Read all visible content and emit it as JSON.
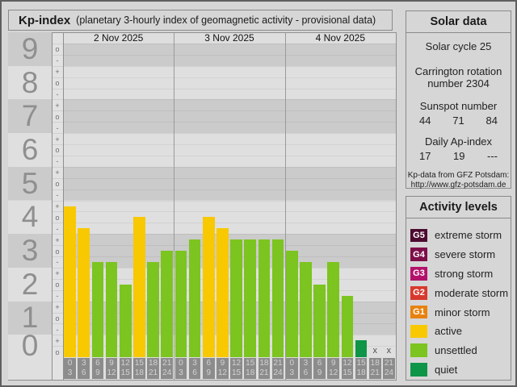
{
  "window": {
    "title_main": "Kp-index",
    "title_sub": "(planetary 3-hourly index of geomagnetic activity - provisional data)"
  },
  "chart_data": {
    "type": "bar",
    "title": "Kp-index",
    "ylabel": "Kp",
    "ylim": [
      0,
      9.67
    ],
    "grid": true,
    "y_major_ticks": [
      "9",
      "8",
      "7",
      "6",
      "5",
      "4",
      "3",
      "2",
      "1",
      "0"
    ],
    "y_sub_ticks": [
      "+",
      "o",
      "-"
    ],
    "x_day_labels": [
      "2 Nov 2025",
      "3 Nov 2025",
      "4 Nov 2025"
    ],
    "hour_slots": [
      [
        "0",
        "3"
      ],
      [
        "3",
        "6"
      ],
      [
        "6",
        "9"
      ],
      [
        "9",
        "12"
      ],
      [
        "12",
        "15"
      ],
      [
        "15",
        "18"
      ],
      [
        "18",
        "21"
      ],
      [
        "21",
        "24"
      ]
    ],
    "no_data_marker": "x",
    "series": [
      {
        "date": "2 Nov 2025",
        "values": [
          4.33,
          3.67,
          2.67,
          2.67,
          2.0,
          4.0,
          2.67,
          3.0
        ],
        "kp_labels": [
          "4+",
          "4-",
          "3-",
          "3-",
          "2o",
          "4o",
          "3-",
          "3o"
        ],
        "levels": [
          "active",
          "active",
          "unsettled",
          "unsettled",
          "unsettled",
          "active",
          "unsettled",
          "unsettled"
        ]
      },
      {
        "date": "3 Nov 2025",
        "values": [
          3.0,
          3.33,
          4.0,
          3.67,
          3.33,
          3.33,
          3.33,
          3.33
        ],
        "kp_labels": [
          "3o",
          "3+",
          "4o",
          "4-",
          "3+",
          "3+",
          "3+",
          "3+"
        ],
        "levels": [
          "unsettled",
          "unsettled",
          "active",
          "active",
          "unsettled",
          "unsettled",
          "unsettled",
          "unsettled"
        ]
      },
      {
        "date": "4 Nov 2025",
        "values": [
          3.0,
          2.67,
          2.0,
          2.67,
          1.67,
          0.33,
          null,
          null
        ],
        "kp_labels": [
          "3o",
          "3-",
          "2o",
          "3-",
          "2-",
          "0+",
          null,
          null
        ],
        "levels": [
          "unsettled",
          "unsettled",
          "unsettled",
          "unsettled",
          "unsettled",
          "quiet",
          null,
          null
        ]
      }
    ],
    "level_colors": {
      "active": "#f8c800",
      "unsettled": "#7cc41f",
      "quiet": "#0e9548"
    },
    "band_colors": {
      "dark": "#cbcbcb",
      "light": "#dfdfdf"
    }
  },
  "solar_panel": {
    "title": "Solar data",
    "solar_cycle": "Solar cycle 25",
    "carrington_line1": "Carrington rotation",
    "carrington_line2": "number 2304",
    "sunspot_label": "Sunspot number",
    "sunspot_values": [
      "44",
      "71",
      "84"
    ],
    "ap_label": "Daily Ap-index",
    "ap_values": [
      "17",
      "19",
      "---"
    ],
    "source_line1": "Kp-data from GFZ Potsdam:",
    "source_line2": "http://www.gfz-potsdam.de"
  },
  "activity_panel": {
    "title": "Activity levels",
    "items": [
      {
        "badge": "G5",
        "label": "extreme storm",
        "color": "#4c0b2f"
      },
      {
        "badge": "G4",
        "label": "severe storm",
        "color": "#7e0e49"
      },
      {
        "badge": "G3",
        "label": "strong storm",
        "color": "#b3126b"
      },
      {
        "badge": "G2",
        "label": "moderate storm",
        "color": "#d73a2d"
      },
      {
        "badge": "G1",
        "label": "minor storm",
        "color": "#e8820f"
      },
      {
        "badge": null,
        "label": "active",
        "color": "#f8c800"
      },
      {
        "badge": null,
        "label": "unsettled",
        "color": "#7cc41f"
      },
      {
        "badge": null,
        "label": "quiet",
        "color": "#0e9548"
      }
    ]
  }
}
